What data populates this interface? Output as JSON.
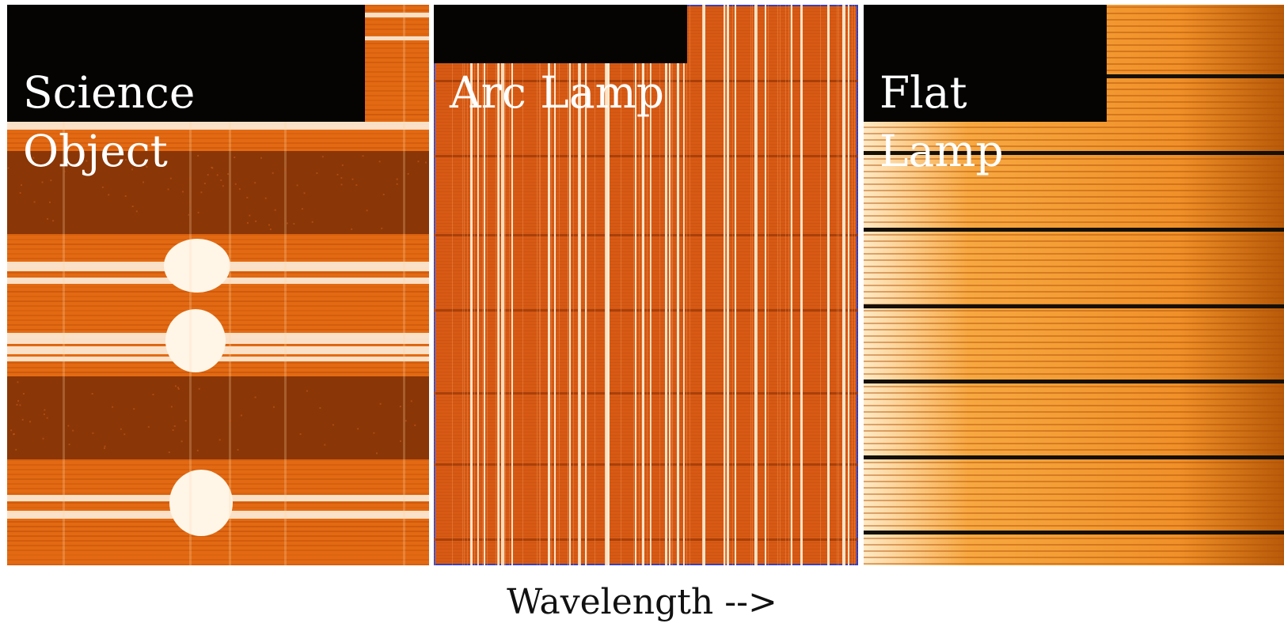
{
  "panels": [
    {
      "id": "science",
      "title": "Science Object"
    },
    {
      "id": "arc",
      "title": "Arc Lamp"
    },
    {
      "id": "flat",
      "title": "Flat Lamp"
    }
  ],
  "caption": "Wavelength  -->",
  "colors": {
    "science_dark": "#8a3606",
    "science_band": "#e36a12",
    "science_bright": "#fff6e8",
    "arc_bg": "#d75a14",
    "arc_line": "#fff3dc",
    "arc_border": "#1f3fd8",
    "flat_bright": "#ffe9c4",
    "flat_mid": "#f09028",
    "flat_dark_line": "#141008",
    "label_bg": "#050403",
    "label_text": "#ffffff"
  }
}
